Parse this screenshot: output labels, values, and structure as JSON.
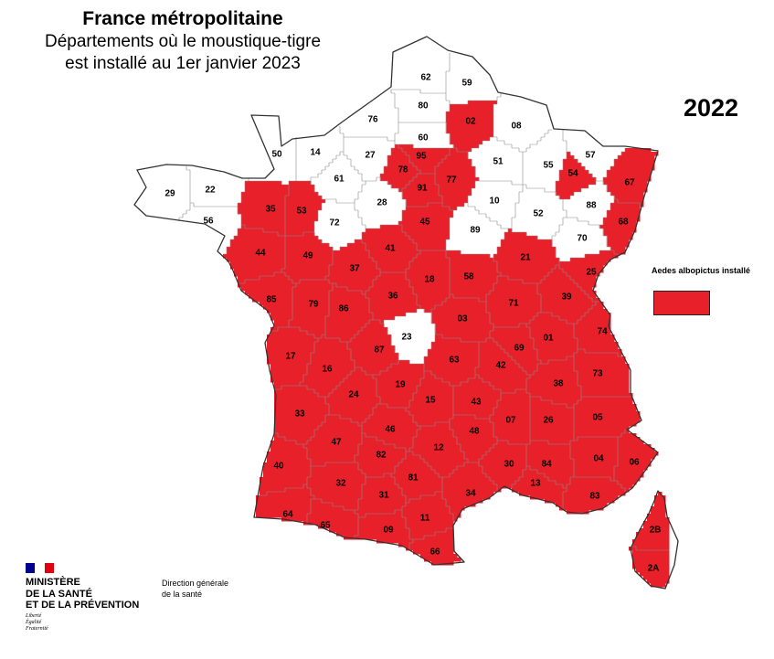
{
  "title": {
    "line1": "France métropolitaine",
    "line2": "Départements où le moustique-tigre",
    "line3": "est installé au 1er janvier 2023"
  },
  "year": "2022",
  "legend": {
    "label": "Aedes albopictus installé",
    "color": "#e8202a"
  },
  "colors": {
    "installed": "#e8202a",
    "not_installed": "#ffffff",
    "border": "#4a4a4a"
  },
  "departments": [
    {
      "code": "62",
      "installed": false
    },
    {
      "code": "59",
      "installed": false
    },
    {
      "code": "80",
      "installed": false
    },
    {
      "code": "02",
      "installed": true
    },
    {
      "code": "08",
      "installed": false
    },
    {
      "code": "76",
      "installed": false
    },
    {
      "code": "60",
      "installed": false
    },
    {
      "code": "50",
      "installed": false
    },
    {
      "code": "14",
      "installed": false
    },
    {
      "code": "27",
      "installed": false
    },
    {
      "code": "95",
      "installed": true
    },
    {
      "code": "57",
      "installed": false
    },
    {
      "code": "51",
      "installed": false
    },
    {
      "code": "55",
      "installed": false
    },
    {
      "code": "54",
      "installed": true
    },
    {
      "code": "78",
      "installed": true
    },
    {
      "code": "77",
      "installed": true
    },
    {
      "code": "91",
      "installed": true
    },
    {
      "code": "67",
      "installed": true
    },
    {
      "code": "61",
      "installed": false
    },
    {
      "code": "29",
      "installed": false
    },
    {
      "code": "22",
      "installed": false
    },
    {
      "code": "28",
      "installed": false
    },
    {
      "code": "10",
      "installed": false
    },
    {
      "code": "88",
      "installed": false
    },
    {
      "code": "52",
      "installed": false
    },
    {
      "code": "56",
      "installed": false
    },
    {
      "code": "35",
      "installed": true
    },
    {
      "code": "53",
      "installed": true
    },
    {
      "code": "72",
      "installed": false
    },
    {
      "code": "45",
      "installed": true
    },
    {
      "code": "68",
      "installed": true
    },
    {
      "code": "89",
      "installed": false
    },
    {
      "code": "70",
      "installed": false
    },
    {
      "code": "44",
      "installed": true
    },
    {
      "code": "49",
      "installed": true
    },
    {
      "code": "41",
      "installed": true
    },
    {
      "code": "21",
      "installed": true
    },
    {
      "code": "25",
      "installed": true
    },
    {
      "code": "37",
      "installed": true
    },
    {
      "code": "18",
      "installed": true
    },
    {
      "code": "58",
      "installed": true
    },
    {
      "code": "85",
      "installed": true
    },
    {
      "code": "79",
      "installed": true
    },
    {
      "code": "36",
      "installed": true
    },
    {
      "code": "71",
      "installed": true
    },
    {
      "code": "39",
      "installed": true
    },
    {
      "code": "86",
      "installed": true
    },
    {
      "code": "03",
      "installed": true
    },
    {
      "code": "74",
      "installed": true
    },
    {
      "code": "01",
      "installed": true
    },
    {
      "code": "23",
      "installed": false
    },
    {
      "code": "69",
      "installed": true
    },
    {
      "code": "17",
      "installed": true
    },
    {
      "code": "87",
      "installed": true
    },
    {
      "code": "63",
      "installed": true
    },
    {
      "code": "42",
      "installed": true
    },
    {
      "code": "16",
      "installed": true
    },
    {
      "code": "73",
      "installed": true
    },
    {
      "code": "38",
      "installed": true
    },
    {
      "code": "19",
      "installed": true
    },
    {
      "code": "24",
      "installed": true
    },
    {
      "code": "15",
      "installed": true
    },
    {
      "code": "33",
      "installed": true
    },
    {
      "code": "43",
      "installed": true
    },
    {
      "code": "07",
      "installed": true
    },
    {
      "code": "26",
      "installed": true
    },
    {
      "code": "05",
      "installed": true
    },
    {
      "code": "46",
      "installed": true
    },
    {
      "code": "48",
      "installed": true
    },
    {
      "code": "47",
      "installed": true
    },
    {
      "code": "12",
      "installed": true
    },
    {
      "code": "04",
      "installed": true
    },
    {
      "code": "06",
      "installed": true
    },
    {
      "code": "30",
      "installed": true
    },
    {
      "code": "84",
      "installed": true
    },
    {
      "code": "40",
      "installed": true
    },
    {
      "code": "82",
      "installed": true
    },
    {
      "code": "81",
      "installed": true
    },
    {
      "code": "13",
      "installed": true
    },
    {
      "code": "83",
      "installed": true
    },
    {
      "code": "32",
      "installed": true
    },
    {
      "code": "34",
      "installed": true
    },
    {
      "code": "31",
      "installed": true
    },
    {
      "code": "2B",
      "installed": true
    },
    {
      "code": "64",
      "installed": true
    },
    {
      "code": "65",
      "installed": true
    },
    {
      "code": "09",
      "installed": true
    },
    {
      "code": "11",
      "installed": true
    },
    {
      "code": "66",
      "installed": true
    },
    {
      "code": "2A",
      "installed": true
    }
  ],
  "footer": {
    "ministry_line1": "MINISTÈRE",
    "ministry_line2": "DE LA SANTÉ",
    "ministry_line3": "ET DE LA PRÉVENTION",
    "motto1": "Liberté",
    "motto2": "Égalité",
    "motto3": "Fraternité",
    "directorate_line1": "Direction générale",
    "directorate_line2": "de la santé",
    "flag_colors": [
      "#000091",
      "#ffffff",
      "#e1000f"
    ]
  }
}
